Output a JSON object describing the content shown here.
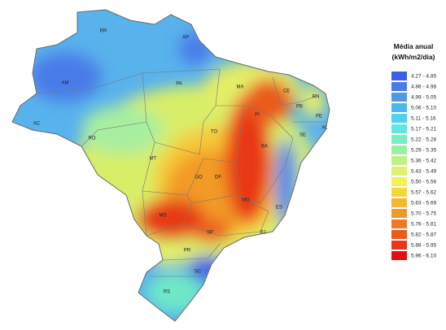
{
  "legend": {
    "title": [
      "Média anual",
      "(kWh/m2/dia)"
    ],
    "items": [
      {
        "label": "4.27 - 4.85",
        "color": "#3d5ee6"
      },
      {
        "label": "4.86 - 4.98",
        "color": "#4a7ce9"
      },
      {
        "label": "4.99 - 5.05",
        "color": "#4f98ea"
      },
      {
        "label": "5.06 - 5.10",
        "color": "#4cb6ee"
      },
      {
        "label": "5.11 - 5.16",
        "color": "#52d0f0"
      },
      {
        "label": "5.17 - 5.21",
        "color": "#5ee6e2"
      },
      {
        "label": "5.22 - 5.28",
        "color": "#78eec4"
      },
      {
        "label": "5.29 - 5.35",
        "color": "#9cf0a4"
      },
      {
        "label": "5.36 - 5.42",
        "color": "#c0f08a"
      },
      {
        "label": "5.43 - 5.49",
        "color": "#e0f070"
      },
      {
        "label": "5.50 - 5.56",
        "color": "#f6f052"
      },
      {
        "label": "5.57 - 5.62",
        "color": "#f8d63a"
      },
      {
        "label": "5.63 - 5.69",
        "color": "#f5b630"
      },
      {
        "label": "5.70 - 5.75",
        "color": "#f29828"
      },
      {
        "label": "5.76 - 5.81",
        "color": "#ee7a22"
      },
      {
        "label": "5.82 - 5.87",
        "color": "#ea5a1c"
      },
      {
        "label": "5.88 - 5.95",
        "color": "#e83818"
      },
      {
        "label": "5.96 - 6.10",
        "color": "#e61010"
      }
    ]
  },
  "states": [
    "RR",
    "AP",
    "AM",
    "PA",
    "MA",
    "CE",
    "RN",
    "PB",
    "PE",
    "AL",
    "SE",
    "PI",
    "AC",
    "RO",
    "TO",
    "BA",
    "MT",
    "GO",
    "DF",
    "MG",
    "ES",
    "MS",
    "SP",
    "RJ",
    "PR",
    "SC",
    "RS"
  ]
}
